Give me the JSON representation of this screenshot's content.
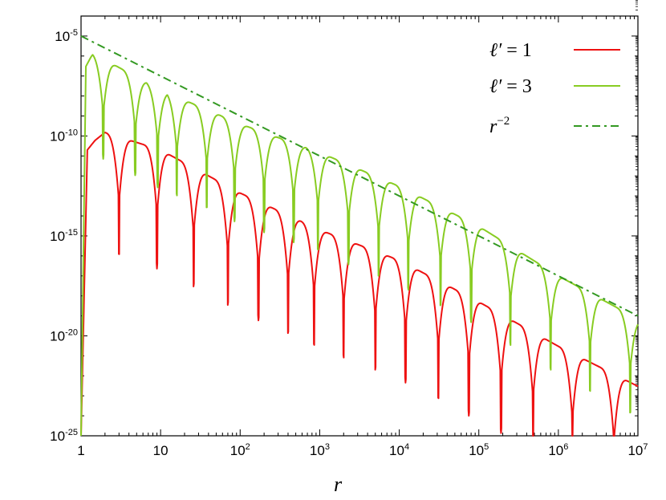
{
  "chart_data": {
    "type": "line",
    "title": "",
    "xlabel": "r",
    "ylabel": "",
    "x_scale": "log",
    "y_scale": "log",
    "xlim": [
      1,
      10000000
    ],
    "ylim": [
      1e-25,
      0.0001
    ],
    "x_ticks": [
      {
        "value": 1,
        "base": "1",
        "exp": ""
      },
      {
        "value": 10,
        "base": "10",
        "exp": ""
      },
      {
        "value": 100,
        "base": "10",
        "exp": "2"
      },
      {
        "value": 1000,
        "base": "10",
        "exp": "3"
      },
      {
        "value": 10000,
        "base": "10",
        "exp": "4"
      },
      {
        "value": 100000,
        "base": "10",
        "exp": "5"
      },
      {
        "value": 1000000,
        "base": "10",
        "exp": "6"
      },
      {
        "value": 10000000,
        "base": "10",
        "exp": "7"
      }
    ],
    "y_ticks": [
      {
        "value": 1e-05,
        "base": "10",
        "exp": "-5"
      },
      {
        "value": 1e-10,
        "base": "10",
        "exp": "-10"
      },
      {
        "value": 1e-15,
        "base": "10",
        "exp": "-15"
      },
      {
        "value": 1e-20,
        "base": "10",
        "exp": "-20"
      },
      {
        "value": 1e-25,
        "base": "10",
        "exp": "-25"
      }
    ],
    "grid": false,
    "legend_position": "top-right",
    "series": [
      {
        "name": "ℓ′ = 1",
        "color": "#ee1111",
        "style": "solid",
        "start": [
          1.0,
          1e-25
        ],
        "envelope": [
          [
            1.2,
            2e-11
          ],
          [
            1.5,
            6e-11
          ],
          [
            2.0,
            1.5e-10
          ],
          [
            10,
            2e-11
          ],
          [
            100,
            1.4e-13
          ],
          [
            1000,
            2e-15
          ],
          [
            10000,
            6e-17
          ],
          [
            100000,
            5e-19
          ],
          [
            1000000,
            3e-21
          ],
          [
            10000000,
            3e-23
          ]
        ],
        "dips": [
          3.0,
          9.0,
          26,
          70,
          170,
          400,
          850,
          2000,
          5000,
          12000,
          31000,
          75000,
          190000,
          480000,
          1500000,
          5000000
        ],
        "dip_depth": 6
      },
      {
        "name": "ℓ′ = 3",
        "color": "#88cc22",
        "style": "solid",
        "start": [
          1.0,
          1e-25
        ],
        "envelope": [
          [
            1.15,
            3e-07
          ],
          [
            1.4,
            1.3e-06
          ],
          [
            1.8,
            8e-07
          ],
          [
            10,
            2e-08
          ],
          [
            100,
            4e-10
          ],
          [
            1000,
            1.5e-11
          ],
          [
            10000,
            3e-13
          ],
          [
            100000,
            3e-15
          ],
          [
            1000000,
            1e-17
          ],
          [
            10000000,
            7e-20
          ]
        ],
        "dips": [
          1.9,
          4.8,
          9.2,
          16,
          38,
          85,
          200,
          470,
          950,
          2300,
          5500,
          13000,
          33000,
          80000,
          250000,
          800000,
          2500000,
          8000000
        ],
        "dip_depth": 5
      },
      {
        "name": "r^{-2}",
        "color": "#339922",
        "style": "dash-dot",
        "points": [
          [
            1,
            1e-05
          ],
          [
            10000000,
            1e-19
          ]
        ]
      }
    ]
  }
}
